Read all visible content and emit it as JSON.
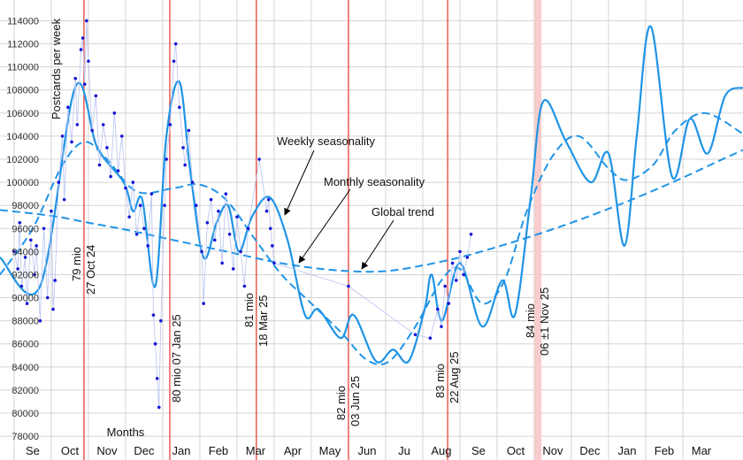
{
  "chart_data": {
    "type": "line",
    "y_label": "Postcards per week",
    "x_label": "Months",
    "xlim": [
      -0.38,
      19.62
    ],
    "ylim": [
      77700,
      115800
    ],
    "yticks": [
      78000,
      80000,
      82000,
      84000,
      86000,
      88000,
      90000,
      92000,
      94000,
      96000,
      98000,
      100000,
      102000,
      104000,
      106000,
      108000,
      110000,
      112000,
      114000
    ],
    "xticks": [
      {
        "value": 0.5,
        "label": "Se"
      },
      {
        "value": 1.5,
        "label": "Oct"
      },
      {
        "value": 2.5,
        "label": "Nov"
      },
      {
        "value": 3.5,
        "label": "Dec"
      },
      {
        "value": 4.5,
        "label": "Jan"
      },
      {
        "value": 5.5,
        "label": "Feb"
      },
      {
        "value": 6.5,
        "label": "Mar"
      },
      {
        "value": 7.5,
        "label": "Apr"
      },
      {
        "value": 8.5,
        "label": "May"
      },
      {
        "value": 9.5,
        "label": "Jun"
      },
      {
        "value": 10.5,
        "label": "Ju"
      },
      {
        "value": 11.5,
        "label": "Aug"
      },
      {
        "value": 12.5,
        "label": "Se"
      },
      {
        "value": 13.5,
        "label": "Oct"
      },
      {
        "value": 14.5,
        "label": "Nov"
      },
      {
        "value": 15.5,
        "label": "Dec"
      },
      {
        "value": 16.5,
        "label": "Jan"
      },
      {
        "value": 17.5,
        "label": "Feb"
      },
      {
        "value": 18.5,
        "label": "Mar"
      }
    ],
    "grid": true,
    "series": [
      {
        "name": "Global trend",
        "color": "#1f94e6",
        "dash": true,
        "x": [
          -0.38,
          1,
          2,
          3,
          4,
          5,
          6,
          7,
          8,
          9,
          10,
          11,
          12,
          13,
          14,
          15,
          16,
          17,
          18,
          19,
          19.62
        ],
        "values": [
          97600,
          97100,
          96500,
          95900,
          95200,
          94500,
          93800,
          93100,
          92600,
          92300,
          92300,
          92800,
          93500,
          94400,
          95400,
          96500,
          97700,
          99000,
          100400,
          101900,
          102800
        ]
      },
      {
        "name": "Monthly seasonality",
        "color": "#1f94e6",
        "dash": true,
        "x": [
          -0.38,
          0.5,
          1.3,
          1.9,
          2.5,
          3.3,
          4.3,
          5.0,
          5.7,
          6.5,
          7.2,
          8.0,
          8.8,
          9.5,
          10.1,
          10.8,
          11.5,
          12.0,
          12.6,
          13.2,
          13.8,
          14.5,
          15.2,
          16.0,
          16.5,
          17.2,
          17.8,
          18.6,
          19.62
        ],
        "values": [
          92000,
          96000,
          101500,
          103500,
          102000,
          99200,
          99500,
          99800,
          98500,
          95000,
          92000,
          89500,
          87000,
          84600,
          84500,
          87500,
          91500,
          92500,
          89500,
          91500,
          97500,
          102300,
          104000,
          101200,
          100200,
          101500,
          104500,
          106000,
          104200
        ]
      },
      {
        "name": "Weekly seasonality",
        "color": "#1f94e6",
        "dash": false,
        "x": [
          -0.38,
          0.7,
          1.64,
          2.24,
          2.95,
          3.2,
          3.45,
          3.8,
          4.1,
          4.45,
          4.74,
          5.1,
          5.45,
          5.76,
          6.05,
          6.4,
          6.88,
          7.36,
          7.83,
          8.19,
          8.79,
          9.14,
          9.74,
          10.2,
          10.62,
          11.05,
          11.24,
          11.52,
          12.0,
          12.6,
          13.14,
          13.48,
          13.9,
          14.24,
          14.86,
          15.52,
          16.0,
          16.43,
          16.76,
          17.14,
          17.71,
          18.19,
          18.67,
          19.14,
          19.62
        ],
        "values": [
          93500,
          91000,
          108200,
          103000,
          100000,
          97500,
          98500,
          91000,
          104000,
          108700,
          101000,
          93500,
          96500,
          98000,
          94000,
          97000,
          98700,
          95000,
          88500,
          89000,
          86500,
          88500,
          84500,
          85500,
          84500,
          89000,
          92000,
          88000,
          93000,
          87500,
          91500,
          88500,
          98500,
          107000,
          103500,
          100000,
          102500,
          94500,
          104000,
          113500,
          100500,
          105500,
          102500,
          107500,
          108200
        ]
      },
      {
        "name": "Postcards",
        "color": "#1414d8",
        "type": "scatter",
        "x": [
          0.0,
          0.1,
          0.15,
          0.2,
          0.3,
          0.35,
          0.45,
          0.55,
          0.6,
          0.7,
          0.8,
          0.9,
          1.0,
          1.05,
          1.1,
          1.2,
          1.3,
          1.35,
          1.45,
          1.55,
          1.65,
          1.7,
          1.8,
          1.85,
          1.9,
          1.95,
          2.0,
          2.1,
          2.2,
          2.3,
          2.4,
          2.5,
          2.6,
          2.7,
          2.8,
          2.9,
          3.0,
          3.1,
          3.2,
          3.3,
          3.4,
          3.5,
          3.6,
          3.7,
          3.75,
          3.8,
          3.85,
          3.9,
          3.95,
          4.05,
          4.1,
          4.2,
          4.3,
          4.35,
          4.45,
          4.55,
          4.6,
          4.7,
          4.8,
          4.9,
          5.05,
          5.1,
          5.2,
          5.3,
          5.4,
          5.5,
          5.6,
          5.7,
          5.8,
          5.9,
          6.0,
          6.1,
          6.2,
          6.3,
          6.6,
          6.8,
          6.85,
          6.9,
          6.95,
          7.0,
          9.0,
          10.8,
          11.2,
          11.4,
          11.5,
          11.6,
          11.7,
          11.8,
          11.9,
          12.0,
          12.1,
          12.2,
          12.3
        ],
        "values": [
          94000,
          92500,
          96500,
          91000,
          93500,
          89500,
          95000,
          92000,
          94500,
          88000,
          96000,
          90000,
          97500,
          89000,
          91500,
          100000,
          104000,
          98500,
          106500,
          103500,
          109000,
          105000,
          111500,
          112500,
          108500,
          114000,
          110500,
          104500,
          107500,
          101500,
          105000,
          103000,
          100500,
          106000,
          101000,
          104000,
          99500,
          97000,
          100000,
          95500,
          98000,
          96000,
          94500,
          99000,
          88500,
          86000,
          83000,
          80500,
          88000,
          98000,
          102000,
          105000,
          110500,
          112000,
          106500,
          103000,
          101500,
          104500,
          100000,
          98000,
          94000,
          89500,
          96500,
          98500,
          95000,
          97500,
          93000,
          99000,
          95500,
          92500,
          97000,
          94000,
          91000,
          96000,
          102000,
          97500,
          98500,
          96000,
          94500,
          93000,
          91000,
          86800,
          86500,
          89000,
          87500,
          91000,
          89500,
          93000,
          91500,
          94000,
          92000,
          93500,
          95500
        ]
      }
    ],
    "events": [
      {
        "x": 1.88,
        "labels": [
          "79 mio",
          "27 Oct 24"
        ]
      },
      {
        "x": 4.19,
        "labels": [
          "80 mio 07 Jan 25"
        ]
      },
      {
        "x": 6.52,
        "labels": [
          "81 mio",
          "18 Mar 25"
        ]
      },
      {
        "x": 9.0,
        "labels": [
          "82 mio",
          "03 Jun 25"
        ]
      },
      {
        "x": 11.67,
        "labels": [
          "83 mio",
          "22 Aug 25"
        ]
      },
      {
        "x": 14.1,
        "labels": [
          "84 mio",
          "06 ±1 Nov 25"
        ]
      }
    ],
    "annotations": [
      "Weekly seasonality",
      "Monthly seasonality",
      "Global trend"
    ]
  }
}
